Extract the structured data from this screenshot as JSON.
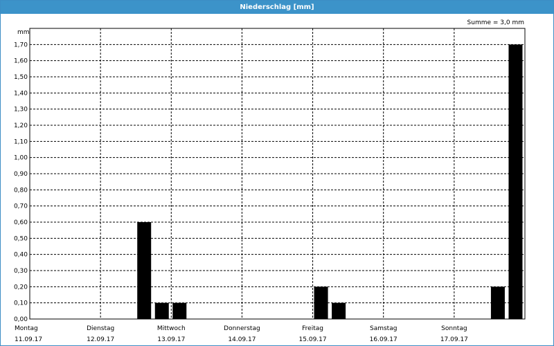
{
  "window": {
    "title": "Niederschlag [mm]"
  },
  "summary": "Summe = 3,0 mm",
  "colors": {
    "titlebar": "#3c93c9",
    "bar": "#000000",
    "grid": "#000000"
  },
  "chart_data": {
    "type": "bar",
    "title": "Niederschlag [mm]",
    "ylabel": "mm",
    "ylim": [
      0,
      1.8
    ],
    "y_ticks": [
      "0,00",
      "0,10",
      "0,20",
      "0,30",
      "0,40",
      "0,50",
      "0,60",
      "0,70",
      "0,80",
      "0,90",
      "1,00",
      "1,10",
      "1,20",
      "1,30",
      "1,40",
      "1,50",
      "1,60",
      "1,70"
    ],
    "y_tick_values": [
      0,
      0.1,
      0.2,
      0.3,
      0.4,
      0.5,
      0.6,
      0.7,
      0.8,
      0.9,
      1.0,
      1.1,
      1.2,
      1.3,
      1.4,
      1.5,
      1.6,
      1.7
    ],
    "days": [
      {
        "weekday": "Montag",
        "date": "11.09.17"
      },
      {
        "weekday": "Dienstag",
        "date": "12.09.17"
      },
      {
        "weekday": "Mittwoch",
        "date": "13.09.17"
      },
      {
        "weekday": "Donnerstag",
        "date": "14.09.17"
      },
      {
        "weekday": "Freitag",
        "date": "15.09.17"
      },
      {
        "weekday": "Samstag",
        "date": "16.09.17"
      },
      {
        "weekday": "Sonntag",
        "date": "17.09.17"
      }
    ],
    "bars": [
      {
        "x": "12.09.17 12:00",
        "value": 0.6
      },
      {
        "x": "12.09.17 18:00",
        "value": 0.1
      },
      {
        "x": "13.09.17 00:00",
        "value": 0.1
      },
      {
        "x": "15.09.17 00:00",
        "value": 0.2
      },
      {
        "x": "15.09.17 06:00",
        "value": 0.1
      },
      {
        "x": "17.09.17 12:00",
        "value": 0.2
      },
      {
        "x": "17.09.17 18:00",
        "value": 1.7
      }
    ],
    "grid": true
  }
}
